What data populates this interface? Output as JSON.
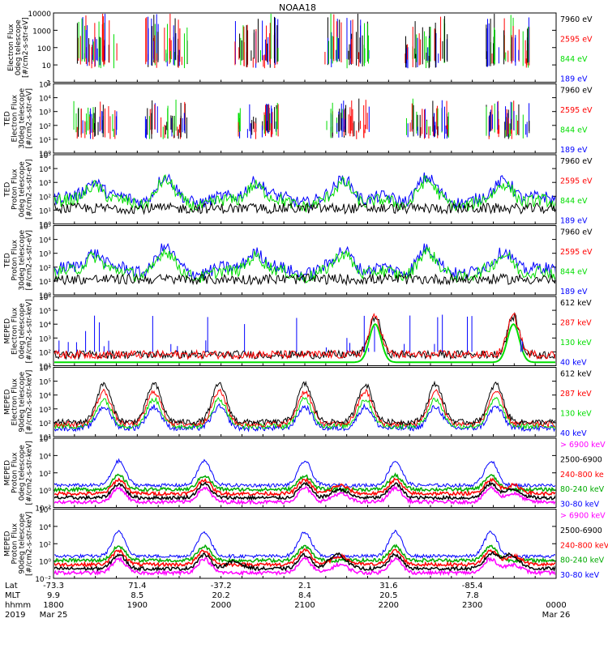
{
  "chart_data": {
    "type": "line",
    "title": "NOAA18",
    "panels": [
      {
        "ylabel": [
          "Electron Flux",
          "0deg telescope",
          "[#/cm2-s-str-eV]"
        ],
        "ticks": [
          "10000",
          "1000",
          "100",
          "10",
          "1"
        ],
        "legend": [
          {
            "label": "7960 eV",
            "color": "#000000"
          },
          {
            "label": "2595 eV",
            "color": "#ff0000"
          },
          {
            "label": "844 eV",
            "color": "#00dd00"
          },
          {
            "label": "189 eV",
            "color": "#0000ff"
          }
        ],
        "style": "ted_e"
      },
      {
        "ylabel": [
          "TED",
          "Electron Flux",
          "30deg telescope",
          "[#/cm2-s-str-eV]"
        ],
        "ticks": [
          "10⁵",
          "10⁴",
          "10³",
          "10²",
          "10¹",
          "10⁰"
        ],
        "legend": [
          {
            "label": "7960 eV",
            "color": "#000000"
          },
          {
            "label": "2595 eV",
            "color": "#ff0000"
          },
          {
            "label": "844 eV",
            "color": "#00dd00"
          },
          {
            "label": "189 eV",
            "color": "#0000ff"
          }
        ],
        "style": "ted_e2"
      },
      {
        "ylabel": [
          "TED",
          "Proton Flux",
          "0deg telescope",
          "[#/cm2-s-str-eV]"
        ],
        "ticks": [
          "10⁵",
          "10⁴",
          "10³",
          "10²",
          "10¹",
          "10⁰"
        ],
        "legend": [
          {
            "label": "7960 eV",
            "color": "#000000"
          },
          {
            "label": "2595 eV",
            "color": "#ff0000"
          },
          {
            "label": "844 eV",
            "color": "#00dd00"
          },
          {
            "label": "189 eV",
            "color": "#0000ff"
          }
        ],
        "style": "ted_p"
      },
      {
        "ylabel": [
          "TED",
          "Proton Flux",
          "30deg telescope",
          "[#/cm2-s-str-eV]"
        ],
        "ticks": [
          "10⁵",
          "10⁴",
          "10³",
          "10²",
          "10¹",
          "10⁰"
        ],
        "legend": [
          {
            "label": "7960 eV",
            "color": "#000000"
          },
          {
            "label": "2595 eV",
            "color": "#ff0000"
          },
          {
            "label": "844 eV",
            "color": "#00dd00"
          },
          {
            "label": "189 eV",
            "color": "#0000ff"
          }
        ],
        "style": "ted_p2"
      },
      {
        "ylabel": [
          "MEPED",
          "Electron Flux",
          "0deg telescope",
          "[#/cm2-s-str-keV]"
        ],
        "ticks": [
          "10⁶",
          "10⁵",
          "10⁴",
          "10³",
          "10²",
          "10¹"
        ],
        "legend": [
          {
            "label": "612 keV",
            "color": "#000000"
          },
          {
            "label": "287 keV",
            "color": "#ff0000"
          },
          {
            "label": "130 keV",
            "color": "#00dd00"
          },
          {
            "label": "40 keV",
            "color": "#0000ff"
          }
        ],
        "style": "mep_e0"
      },
      {
        "ylabel": [
          "MEPED",
          "Electron Flux",
          "90deg telescope",
          "[#/cm2-s-str-keV]"
        ],
        "ticks": [
          "10⁶",
          "10⁵",
          "10⁴",
          "10³",
          "10²",
          "10¹"
        ],
        "legend": [
          {
            "label": "612 keV",
            "color": "#000000"
          },
          {
            "label": "287 keV",
            "color": "#ff0000"
          },
          {
            "label": "130 keV",
            "color": "#00dd00"
          },
          {
            "label": "40 keV",
            "color": "#0000ff"
          }
        ],
        "style": "mep_e90"
      },
      {
        "ylabel": [
          "MEPED",
          "Proton Flux",
          "0deg telescope",
          "[#/cm2-s-str-keV]"
        ],
        "ticks": [
          "10⁶",
          "10⁴",
          "10²",
          "10⁰",
          "10⁻²"
        ],
        "legend": [
          {
            "label": "> 6900 keV",
            "color": "#ff00ff"
          },
          {
            "label": "2500-6900",
            "color": "#000000"
          },
          {
            "label": "240-800 ke",
            "color": "#ff0000"
          },
          {
            "label": "80-240 keV",
            "color": "#00aa00"
          },
          {
            "label": "30-80 keV",
            "color": "#0000ff"
          }
        ],
        "style": "mep_p0"
      },
      {
        "ylabel": [
          "MEPED",
          "Proton Flux",
          "90deg telescope",
          "[#/cm2-s-str-keV]"
        ],
        "ticks": [
          "10⁶",
          "10⁴",
          "10²",
          "10⁰",
          "10⁻²"
        ],
        "legend": [
          {
            "label": "> 6900 keV",
            "color": "#ff00ff"
          },
          {
            "label": "2500-6900",
            "color": "#000000"
          },
          {
            "label": "240-800 keV",
            "color": "#ff0000"
          },
          {
            "label": "80-240 keV",
            "color": "#00aa00"
          },
          {
            "label": "30-80 keV",
            "color": "#0000ff"
          }
        ],
        "style": "mep_p90"
      }
    ],
    "x_axis": {
      "row_labels": [
        "Lat",
        "MLT",
        "hhmm",
        "2019"
      ],
      "columns": [
        {
          "lat": "-73.3",
          "mlt": "9.9",
          "hhmm": "1800",
          "date": "Mar 25"
        },
        {
          "lat": "71.4",
          "mlt": "8.5",
          "hhmm": "1900",
          "date": ""
        },
        {
          "lat": "-37.2",
          "mlt": "20.2",
          "hhmm": "2000",
          "date": ""
        },
        {
          "lat": "2.1",
          "mlt": "8.4",
          "hhmm": "2100",
          "date": ""
        },
        {
          "lat": "31.6",
          "mlt": "20.5",
          "hhmm": "2200",
          "date": ""
        },
        {
          "lat": "-85.4",
          "mlt": "7.8",
          "hhmm": "2300",
          "date": ""
        },
        {
          "lat": "",
          "mlt": "",
          "hhmm": "0000",
          "date": "Mar 26"
        }
      ]
    }
  }
}
